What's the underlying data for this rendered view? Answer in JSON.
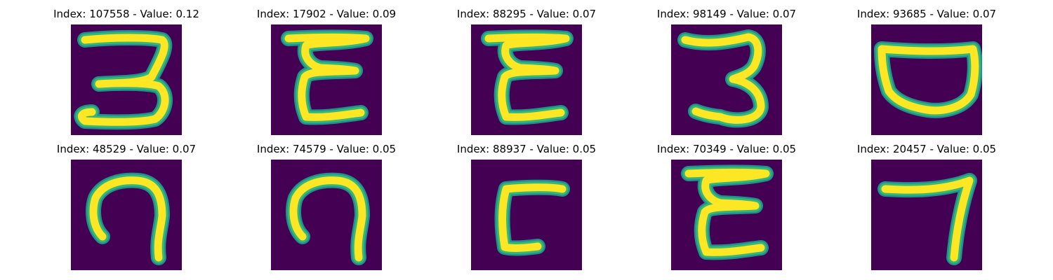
{
  "panels": [
    {
      "title": "Index: 107558 - Value: 0.12",
      "glyph": "three-wide-glyph"
    },
    {
      "title": "Index: 17902 - Value: 0.09",
      "glyph": "epsilon-glyph"
    },
    {
      "title": "Index: 88295 - Value: 0.07",
      "glyph": "epsilon-glyph"
    },
    {
      "title": "Index: 98149 - Value: 0.07",
      "glyph": "three-glyph"
    },
    {
      "title": "Index: 93685 - Value: 0.07",
      "glyph": "cup-glyph"
    },
    {
      "title": "Index: 48529 - Value: 0.07",
      "glyph": "hook-glyph"
    },
    {
      "title": "Index: 74579 - Value: 0.05",
      "glyph": "hook-glyph"
    },
    {
      "title": "Index: 88937 - Value: 0.05",
      "glyph": "c-square-glyph"
    },
    {
      "title": "Index: 70349 - Value: 0.05",
      "glyph": "epsilon-glyph"
    },
    {
      "title": "Index: 20457 - Value: 0.05",
      "glyph": "seven-glyph"
    }
  ],
  "colors": {
    "background": "#440154",
    "stroke_core": "#fde725",
    "stroke_edge": "#35b779",
    "stroke_halo": "#21918c"
  }
}
